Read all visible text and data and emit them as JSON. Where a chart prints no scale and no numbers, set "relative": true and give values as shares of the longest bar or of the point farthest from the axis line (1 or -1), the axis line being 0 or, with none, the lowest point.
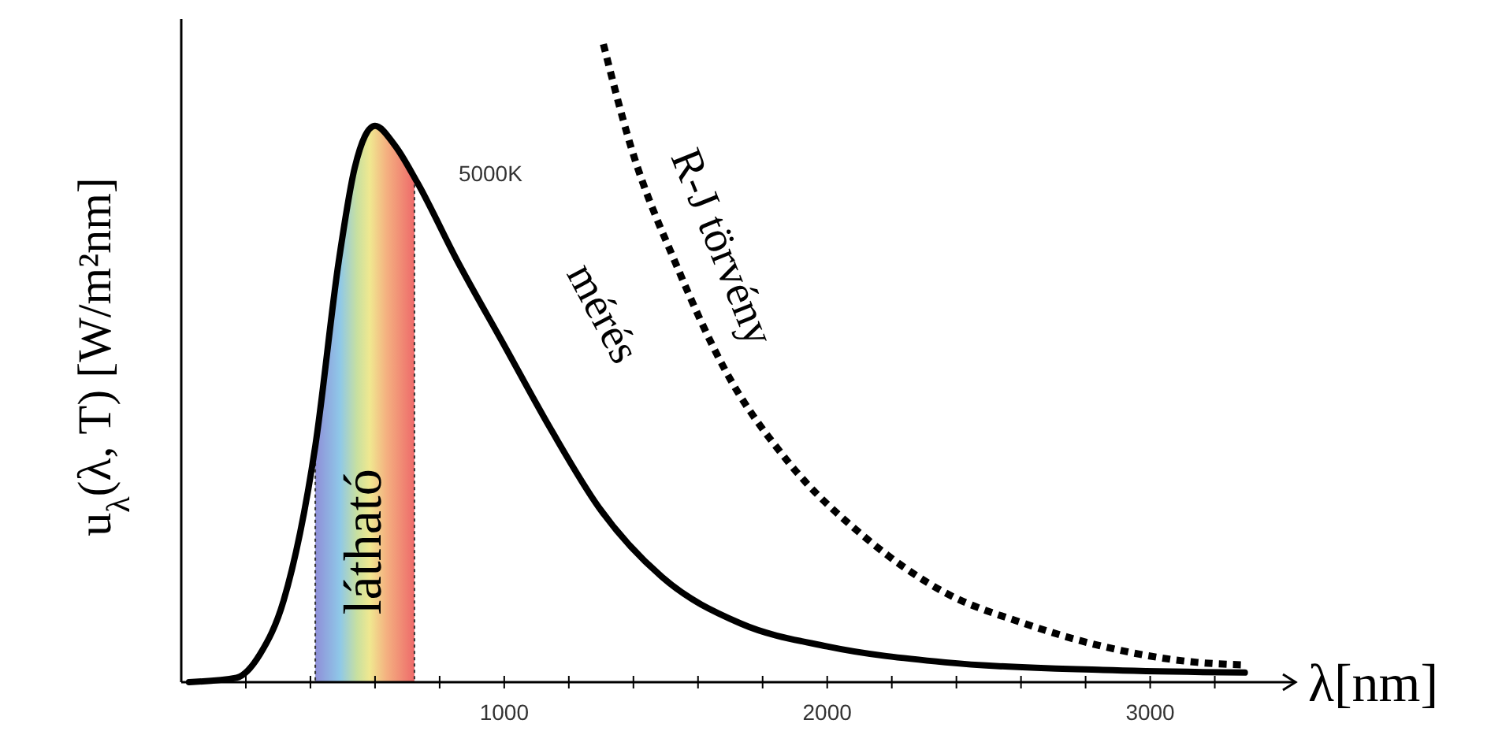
{
  "chart_data": {
    "type": "line",
    "relative": true,
    "xlabel": "λ[nm]",
    "ylabel": "u$_{λ}$(λ, T) [W/m²nm]",
    "xlim": [
      0,
      3450
    ],
    "xticks": [
      {
        "value": 200,
        "label": null
      },
      {
        "value": 400,
        "label": null
      },
      {
        "value": 600,
        "label": null
      },
      {
        "value": 800,
        "label": null
      },
      1000,
      {
        "value": 1200,
        "label": null
      },
      {
        "value": 1400,
        "label": null
      },
      {
        "value": 1600,
        "label": null
      },
      {
        "value": 1800,
        "label": null
      },
      2000,
      {
        "value": 2200,
        "label": null
      },
      {
        "value": 2400,
        "label": null
      },
      {
        "value": 2600,
        "label": null
      },
      {
        "value": 2800,
        "label": null
      },
      3000,
      {
        "value": 3200,
        "label": null
      }
    ],
    "series": [
      {
        "name": "mérés",
        "color": "#000000",
        "line_style": "solid",
        "x": [
          24,
          171,
          244,
          317,
          415,
          488,
          537,
          600,
          659,
          732,
          854,
          1000,
          1146,
          1293,
          1488,
          1732,
          2000,
          2366,
          2854,
          3293
        ],
        "values": [
          0,
          0.007,
          0.044,
          0.128,
          0.37,
          0.661,
          0.806,
          0.872,
          0.843,
          0.782,
          0.661,
          0.528,
          0.395,
          0.274,
          0.165,
          0.092,
          0.056,
          0.031,
          0.019,
          0.015
        ]
      },
      {
        "name": "R-J törvény",
        "color": "#000000",
        "line_style": "dotted",
        "x": [
          1307,
          1390,
          1537,
          1683,
          1878,
          2122,
          2366,
          2610,
          2854,
          3146,
          3293
        ],
        "values": [
          1,
          0.843,
          0.649,
          0.49,
          0.346,
          0.225,
          0.14,
          0.092,
          0.056,
          0.031,
          0.027
        ]
      }
    ],
    "bands": [
      {
        "axis": "x",
        "from": 415,
        "to": 722,
        "label": "látható"
      }
    ],
    "annotations": [
      "5000K"
    ]
  }
}
